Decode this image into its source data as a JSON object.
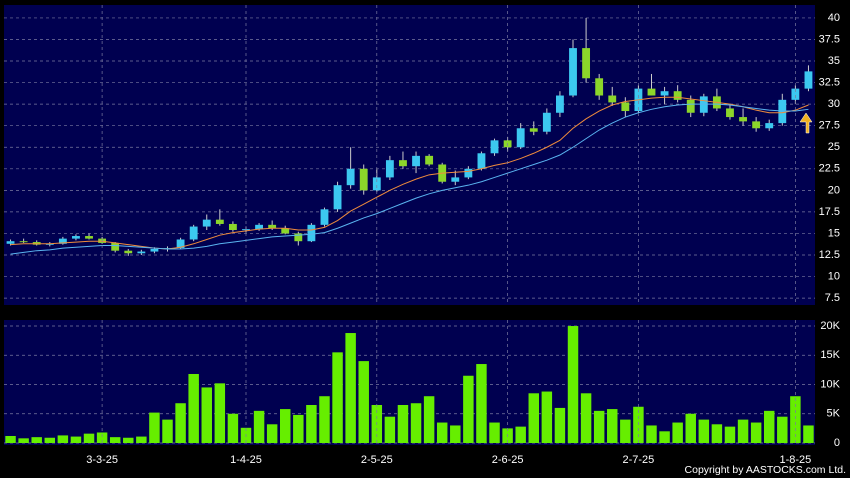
{
  "chart_data": [
    {
      "type": "candlestick",
      "up_color": "#3cc8f0",
      "down_color": "#8cd62a",
      "open": [
        13.8,
        14.1,
        14.0,
        13.7,
        13.8,
        14.4,
        14.7,
        14.4,
        13.9,
        13.0,
        12.7,
        12.9,
        13.2,
        13.3,
        14.3,
        15.8,
        16.6,
        16.1,
        15.4,
        15.5,
        16.0,
        15.6,
        15.0,
        14.1,
        16.0,
        17.8,
        20.6,
        22.5,
        20.0,
        21.5,
        23.5,
        22.8,
        24.0,
        23.0,
        21.0,
        21.5,
        22.5,
        24.3,
        25.8,
        25.0,
        27.2,
        26.8,
        29.0,
        31.0,
        36.5,
        33.0,
        31.0,
        30.2,
        29.2,
        31.8,
        31.0,
        31.5,
        30.5,
        29.0,
        30.9,
        29.5,
        28.5,
        28.0,
        27.2,
        27.8,
        30.5,
        31.8
      ],
      "high": [
        14.3,
        14.4,
        14.2,
        14.0,
        14.6,
        14.9,
        15.0,
        14.6,
        14.0,
        13.2,
        13.1,
        13.4,
        13.5,
        14.5,
        16.0,
        17.2,
        17.8,
        16.4,
        15.8,
        16.2,
        16.5,
        15.9,
        15.2,
        16.2,
        18.0,
        21.0,
        25.0,
        23.0,
        22.5,
        24.0,
        24.5,
        24.5,
        24.2,
        23.2,
        22.3,
        22.8,
        24.5,
        26.0,
        26.2,
        27.8,
        28.0,
        29.5,
        31.5,
        37.5,
        40.0,
        33.5,
        32.0,
        30.8,
        32.2,
        33.5,
        32.0,
        32.2,
        31.0,
        31.2,
        31.8,
        30.0,
        29.5,
        28.5,
        28.2,
        31.2,
        32.2,
        34.5
      ],
      "low": [
        13.6,
        13.9,
        13.6,
        13.5,
        13.7,
        14.2,
        14.3,
        13.8,
        12.8,
        12.4,
        12.5,
        12.7,
        12.9,
        13.2,
        14.1,
        15.4,
        15.9,
        15.2,
        15.1,
        15.3,
        15.4,
        14.9,
        13.6,
        14.0,
        15.8,
        17.5,
        20.2,
        19.5,
        19.8,
        21.2,
        22.5,
        22.0,
        22.8,
        20.8,
        20.6,
        21.3,
        22.3,
        24.0,
        24.5,
        24.8,
        26.4,
        26.5,
        28.5,
        30.8,
        32.5,
        30.5,
        29.8,
        28.5,
        29.0,
        31.0,
        30.0,
        30.2,
        28.5,
        28.6,
        29.2,
        28.2,
        27.5,
        26.8,
        26.9,
        27.5,
        30.0,
        31.5
      ],
      "close": [
        14.1,
        14.0,
        13.7,
        13.8,
        14.4,
        14.7,
        14.4,
        13.9,
        13.0,
        12.7,
        12.9,
        13.2,
        13.3,
        14.3,
        15.8,
        16.6,
        16.1,
        15.4,
        15.5,
        16.0,
        15.6,
        15.0,
        14.1,
        16.0,
        17.8,
        20.6,
        22.5,
        20.0,
        21.5,
        23.5,
        22.8,
        24.0,
        23.0,
        21.0,
        21.5,
        22.5,
        24.3,
        25.8,
        25.0,
        27.2,
        26.8,
        29.0,
        31.0,
        36.5,
        33.0,
        31.0,
        30.2,
        29.2,
        31.8,
        31.0,
        31.5,
        30.5,
        29.0,
        30.9,
        29.5,
        28.5,
        28.0,
        27.2,
        27.8,
        30.5,
        31.8,
        33.8
      ],
      "series": [
        {
          "color": "#f08c3c",
          "values": [
            13.7,
            13.8,
            13.8,
            13.8,
            13.9,
            14.0,
            14.1,
            14.1,
            13.9,
            13.7,
            13.5,
            13.3,
            13.2,
            13.4,
            13.8,
            14.3,
            14.8,
            15.1,
            15.3,
            15.5,
            15.6,
            15.6,
            15.4,
            15.4,
            15.7,
            16.5,
            17.6,
            18.4,
            19.2,
            20.0,
            20.7,
            21.3,
            21.8,
            22.0,
            22.1,
            22.2,
            22.5,
            22.9,
            23.2,
            23.7,
            24.3,
            25.0,
            25.8,
            27.2,
            28.3,
            29.2,
            29.9,
            30.3,
            30.5,
            30.7,
            30.8,
            30.8,
            30.6,
            30.4,
            30.2,
            30.0,
            29.7,
            29.3,
            29.0,
            29.0,
            29.3,
            29.9
          ]
        },
        {
          "color": "#5ab4f0",
          "values": [
            12.6,
            12.8,
            13.0,
            13.1,
            13.3,
            13.4,
            13.5,
            13.6,
            13.6,
            13.5,
            13.4,
            13.3,
            13.2,
            13.2,
            13.3,
            13.5,
            13.8,
            14.0,
            14.2,
            14.4,
            14.6,
            14.7,
            14.8,
            14.9,
            15.1,
            15.6,
            16.2,
            16.8,
            17.3,
            17.9,
            18.5,
            19.1,
            19.6,
            20.0,
            20.3,
            20.6,
            21.0,
            21.5,
            22.0,
            22.5,
            23.0,
            23.5,
            24.1,
            25.0,
            26.0,
            27.0,
            27.8,
            28.5,
            29.0,
            29.4,
            29.7,
            29.9,
            30.0,
            30.0,
            30.0,
            29.9,
            29.7,
            29.5,
            29.3,
            29.2,
            29.2,
            29.4
          ]
        }
      ],
      "ylim": [
        6.7,
        41.5
      ],
      "yticks": [
        7.5,
        10,
        12.5,
        15,
        17.5,
        20,
        22.5,
        25,
        27.5,
        30,
        32.5,
        35,
        37.5,
        40
      ],
      "grid": true
    },
    {
      "type": "bar",
      "color": "#66ee00",
      "categories": [
        null,
        null,
        null,
        null,
        null,
        null,
        null,
        "3-3-25",
        null,
        null,
        null,
        null,
        null,
        null,
        null,
        null,
        null,
        null,
        "1-4-25",
        null,
        null,
        null,
        null,
        null,
        null,
        null,
        null,
        null,
        "2-5-25",
        null,
        null,
        null,
        null,
        null,
        null,
        null,
        null,
        null,
        "2-6-25",
        null,
        null,
        null,
        null,
        null,
        null,
        null,
        null,
        null,
        "2-7-25",
        null,
        null,
        null,
        null,
        null,
        null,
        null,
        null,
        null,
        null,
        null,
        "1-8-25",
        null
      ],
      "values": [
        1200,
        800,
        1000,
        900,
        1300,
        1100,
        1600,
        1800,
        1000,
        900,
        1100,
        5200,
        4000,
        6800,
        11800,
        9500,
        10200,
        5000,
        2600,
        5500,
        3200,
        5800,
        4800,
        6500,
        8000,
        15500,
        18800,
        14000,
        6500,
        4500,
        6500,
        6800,
        8000,
        3500,
        3000,
        11500,
        13500,
        3500,
        2500,
        2800,
        8500,
        8800,
        6000,
        20000,
        8500,
        5500,
        5800,
        4000,
        6200,
        3000,
        2000,
        3500,
        5000,
        4000,
        3200,
        2800,
        4000,
        3500,
        5500,
        4500,
        8000,
        3000
      ],
      "ylim": [
        -340,
        21030
      ],
      "yticks": [
        0,
        {
          "value": 5000,
          "label": "5K"
        },
        {
          "value": 10000,
          "label": "10K"
        },
        {
          "value": 15000,
          "label": "15K"
        },
        {
          "value": 20000,
          "label": "20K"
        }
      ],
      "grid": true,
      "copyright": "Copyright by AASTOCKS.com Ltd."
    }
  ]
}
